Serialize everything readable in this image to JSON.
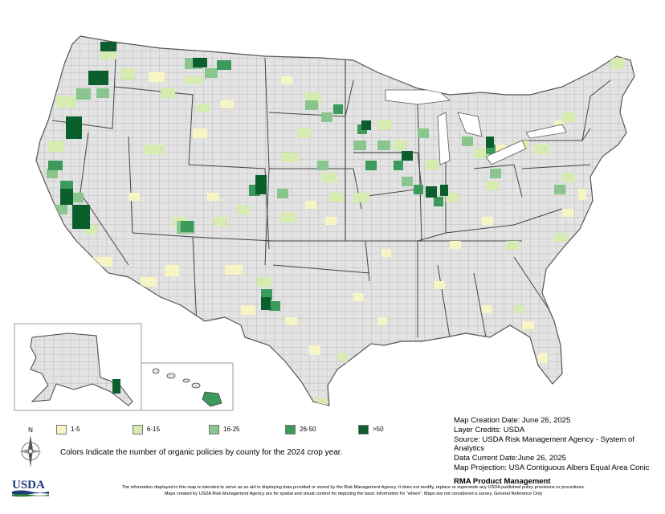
{
  "legend": {
    "items": [
      {
        "label": "1-5",
        "color": "#f7f5c3"
      },
      {
        "label": "6-15",
        "color": "#d6ebb0"
      },
      {
        "label": "16-25",
        "color": "#88c68e"
      },
      {
        "label": "26-50",
        "color": "#3c9a5c"
      },
      {
        "label": ">50",
        "color": "#0b5f2d"
      }
    ]
  },
  "caption": "Colors Indicate the number of organic policies by county for the 2024 crop year.",
  "metadata": {
    "creation_date": "Map Creation Date: June 26, 2025",
    "layer_credits": "Layer Credits: USDA",
    "source": "Source: USDA Risk Management Agency - System of Analytics",
    "data_current": "Data Current Date:June 26, 2025",
    "projection": "Map Projection:  USA Contiguous Albers Equal Area Conic",
    "producer": "RMA Product Management"
  },
  "compass_label": "N",
  "logo_text": "USDA",
  "disclaimer": {
    "line1": "The information displayed in this map is intended to serve as an aid in displaying data provided or stored by the Risk Management Agency. It does not modify, replace or supersede any USDA published policy provisions or procedures.",
    "line2": "Maps created by USDA Risk Management Agency are for spatial and visual context for depicting the basic information for “where”. Maps are not considered a survey. General Reference Only"
  },
  "colors": {
    "no_data": "#e3e3e3",
    "border": "#555555"
  }
}
